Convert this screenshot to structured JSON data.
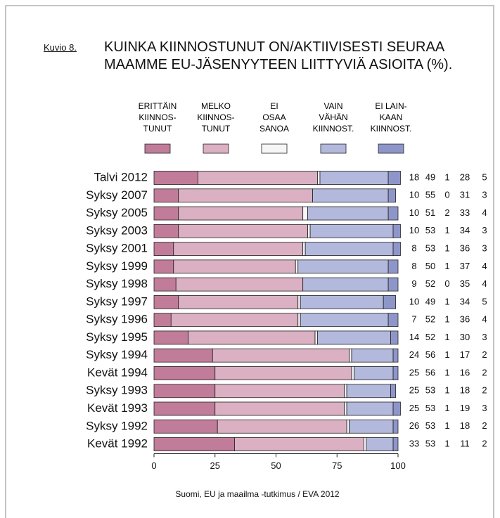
{
  "chart_data": {
    "type": "stacked-bar-horizontal",
    "label": "Kuvio 8.",
    "title": "KUINKA KIINNOSTUNUT ON/AKTIIVISESTI SEURAA\nMAAMME EU-JÄSENYYTEEN LIITTYVIÄ ASIOITA (%).",
    "source": "Suomi, EU ja maailma -tutkimus / EVA 2012",
    "categories": [
      "Talvi 2012",
      "Syksy 2007",
      "Syksy 2005",
      "Syksy 2003",
      "Syksy 2001",
      "Syksy 1999",
      "Syksy 1998",
      "Syksy 1997",
      "Syksy 1996",
      "Syksy 1995",
      "Syksy 1994",
      "Kevät 1994",
      "Syksy 1993",
      "Kevät 1993",
      "Syksy 1992",
      "Kevät 1992"
    ],
    "series": [
      {
        "name": "ERITTÄIN\nKIINNOS-\nTUNUT",
        "color": "#c17c9a",
        "values": [
          18,
          10,
          10,
          10,
          8,
          8,
          9,
          10,
          7,
          14,
          24,
          25,
          25,
          25,
          26,
          33
        ]
      },
      {
        "name": "MELKO\nKIINNOS-\nTUNUT",
        "color": "#dbb0c2",
        "values": [
          49,
          55,
          51,
          53,
          53,
          50,
          52,
          49,
          52,
          52,
          56,
          56,
          53,
          53,
          53,
          53
        ]
      },
      {
        "name": "EI\nOSAA\nSANOA",
        "color": "#f6f6f6",
        "values": [
          1,
          0,
          2,
          1,
          1,
          1,
          0,
          1,
          1,
          1,
          1,
          1,
          1,
          1,
          1,
          1
        ]
      },
      {
        "name": "VAIN\nVÄHÄN\nKIINNOST.",
        "color": "#b3b9dd",
        "values": [
          28,
          31,
          33,
          34,
          36,
          37,
          35,
          34,
          36,
          30,
          17,
          16,
          18,
          19,
          18,
          11
        ]
      },
      {
        "name": "EI LAIN-\nKAAN\nKIINNOST.",
        "color": "#8e96c9",
        "values": [
          5,
          3,
          4,
          3,
          3,
          4,
          4,
          5,
          4,
          3,
          2,
          2,
          2,
          3,
          2,
          2
        ]
      }
    ],
    "xlim": [
      0,
      100
    ],
    "xticks": [
      0,
      25,
      50,
      75,
      100
    ]
  }
}
